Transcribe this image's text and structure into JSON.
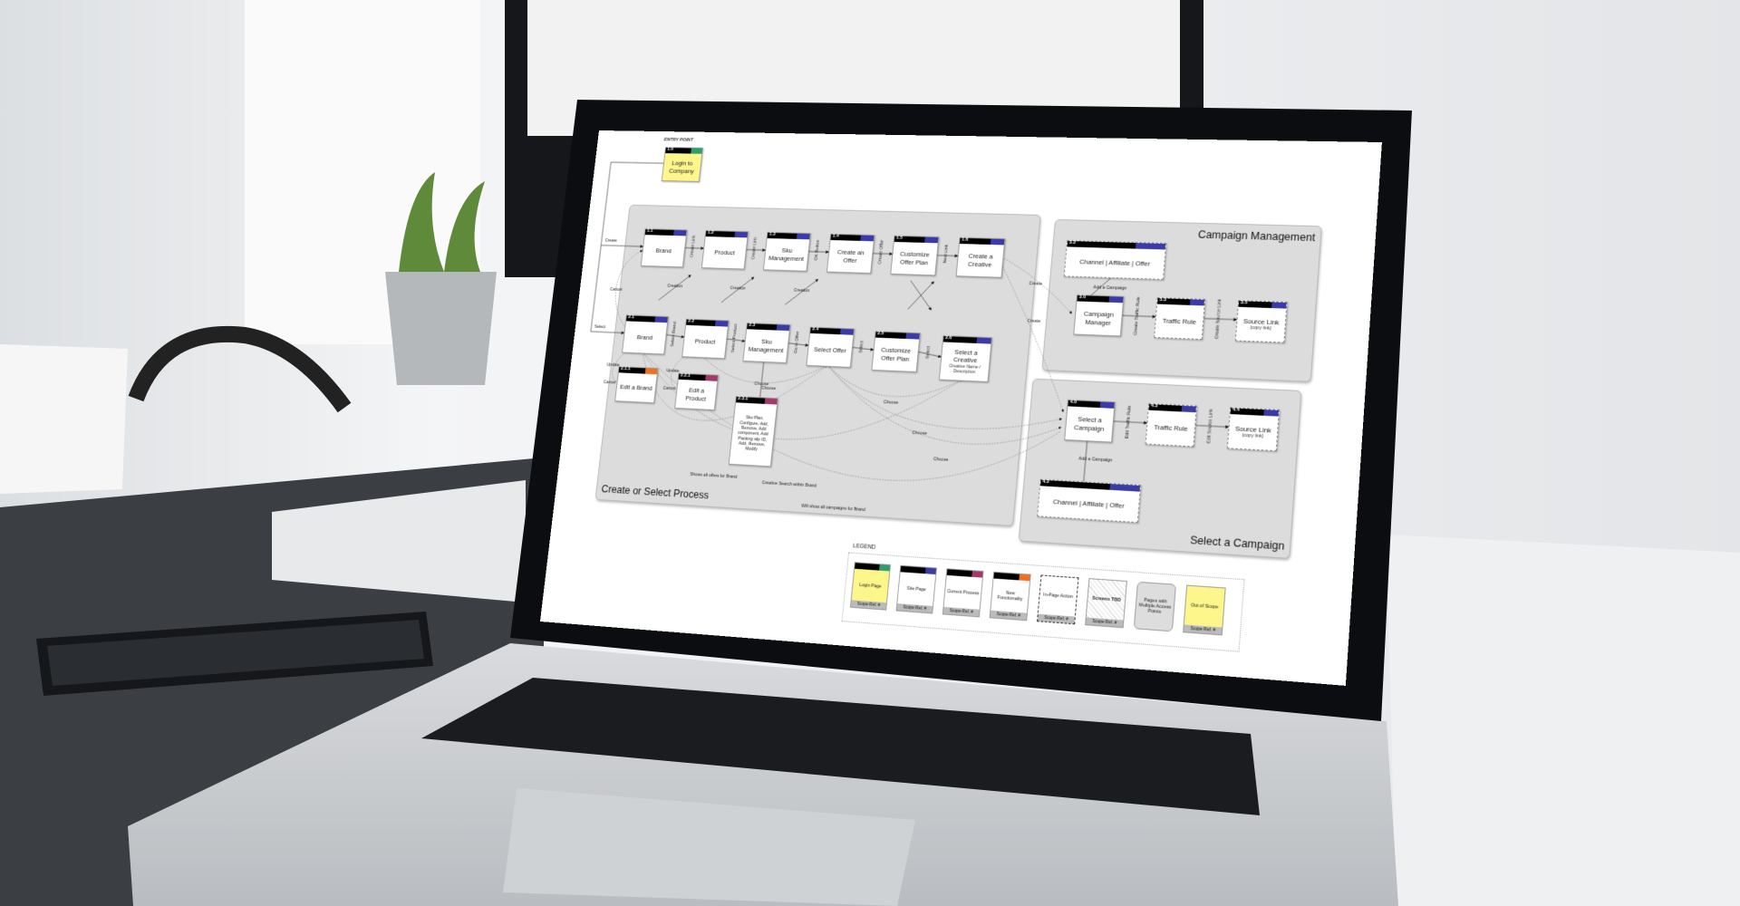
{
  "entry_point_label": "ENTRY POINT",
  "groups": {
    "create_select": "Create or Select Process",
    "campaign_management": "Campaign Management",
    "select_campaign": "Select a Campaign"
  },
  "colors": {
    "login_accent": "#2e9e6b",
    "site_accent": "#3a3aa8",
    "current_process_accent": "#a03a6a",
    "new_functionality_accent": "#f07020",
    "login_fill": "#fdf68a"
  },
  "nodes": {
    "n10": {
      "id": "1.0",
      "label": "Login to Company"
    },
    "n11": {
      "id": "1.1",
      "label": "Brand"
    },
    "n12": {
      "id": "1.2",
      "label": "Product"
    },
    "n13": {
      "id": "1.3",
      "label": "Sku Management"
    },
    "n14": {
      "id": "1.4",
      "label": "Create an Offer"
    },
    "n15": {
      "id": "1.5",
      "label": "Customize Offer Plan"
    },
    "n16": {
      "id": "1.6",
      "label": "Create a Creative"
    },
    "n21": {
      "id": "2.1",
      "label": "Brand"
    },
    "n22": {
      "id": "2.2",
      "label": "Product"
    },
    "n23": {
      "id": "2.3",
      "label": "Sku Management"
    },
    "n24": {
      "id": "2.4",
      "label": "Select Offer"
    },
    "n25": {
      "id": "2.5",
      "label": "Customize Offer Plan"
    },
    "n26": {
      "id": "2.6",
      "label": "Select a Creative",
      "sub": "Creative Name / Description"
    },
    "n211": {
      "id": "2.1.1",
      "label": "Edit a Brand"
    },
    "n221": {
      "id": "2.2.1",
      "label": "Edit a Product"
    },
    "n231": {
      "id": "2.3.1",
      "label": "Sku Plan, Configure, Add, Remove, Add component, Add Packing slip ID, Add, Remove, Modify"
    },
    "n32": {
      "id": "3.2",
      "label": "Channel | Affiliate | Offer"
    },
    "n30": {
      "id": "3.0",
      "label": "Campaign Manager"
    },
    "n33": {
      "id": "3.3",
      "label": "Traffic Rule"
    },
    "n35": {
      "id": "3.5",
      "label": "Source Link",
      "sub": "(copy link)"
    },
    "n40": {
      "id": "4.0",
      "label": "Select a Campaign"
    },
    "n43": {
      "id": "4.3",
      "label": "Traffic Rule"
    },
    "n44": {
      "id": "4.4",
      "label": "Source Link",
      "sub": "(copy link)"
    },
    "n42": {
      "id": "4.2",
      "label": "Channel | Affiliate | Offer"
    }
  },
  "edge_labels": [
    "Create",
    "Select",
    "Create Link",
    "Create Link",
    "OK Button",
    "Create Offer",
    "Next Link",
    "Select Brand",
    "Select Product",
    "Go to Offer",
    "Select",
    "Select",
    "Creation",
    "Creation",
    "Creation",
    "Cancel",
    "Update",
    "Cancel",
    "Update",
    "Cancel",
    "Choose",
    "Choose",
    "Choose",
    "Choose",
    "Create",
    "Create",
    "Shows all offers for Brand",
    "Creative Search within Brand",
    "Will show all campaigns for Brand",
    "Add a Campaign",
    "Create Traffic Rule",
    "Create Source Link",
    "Edit Traffic Rule",
    "Edit Source Link",
    "Add a Campaign",
    "Choose"
  ],
  "legend": {
    "title": "LEGEND",
    "scope_ref": "Scope Ref. #",
    "items": [
      {
        "label": "Login Page"
      },
      {
        "label": "Site Page"
      },
      {
        "label": "Current Process"
      },
      {
        "label": "New Functionality"
      },
      {
        "label": "In-Page Action"
      },
      {
        "label": "Screens TBD"
      },
      {
        "label": "Pages with Multiple Access Points"
      },
      {
        "label": "Out of Scope"
      }
    ]
  }
}
